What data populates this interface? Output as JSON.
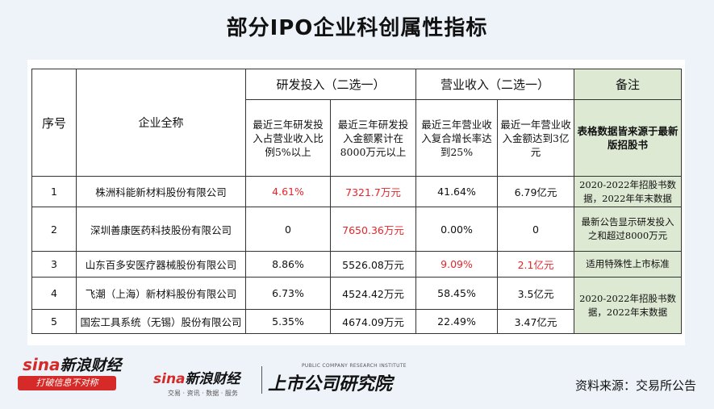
{
  "title": "部分IPO企业科创属性指标",
  "table": {
    "col_seq": "序号",
    "col_name": "企业全称",
    "group_rd": "研发投入（二选一）",
    "group_rev": "营业收入（二选一）",
    "group_note": "备注",
    "sub_rd1": "最近三年研发投入占营业收入比例5%以上",
    "sub_rd2": "最近三年研发投入金额累计在8000万元以上",
    "sub_rev1": "最近三年营业收入复合增长率达到25%",
    "sub_rev2": "最近一年营业收入金额达到3亿元",
    "sub_note": "表格数据皆来源于最新版招股书",
    "rows": [
      {
        "seq": "1",
        "name": "株洲科能新材料股份有限公司",
        "rd_ratio": "4.61%",
        "rd_amount": "7321.7万元",
        "rev_growth": "41.64%",
        "rev_last": "6.79亿元",
        "note": "2020-2022年招股书数据，2022年年末数据"
      },
      {
        "seq": "2",
        "name": "深圳善康医药科技股份有限公司",
        "rd_ratio": "0",
        "rd_amount": "7650.36万元",
        "rev_growth": "0.00%",
        "rev_last": "0",
        "note": "最新公告显示研发投入之和超过8000万元"
      },
      {
        "seq": "3",
        "name": "山东百多安医疗器械股份有限公司",
        "rd_ratio": "8.86%",
        "rd_amount": "5526.08万元",
        "rev_growth": "9.09%",
        "rev_last": "2.1亿元",
        "note": "适用特殊性上市标准"
      },
      {
        "seq": "4",
        "name": "飞潮（上海）新材料股份有限公司",
        "rd_ratio": "6.73%",
        "rd_amount": "4524.42万元",
        "rev_growth": "58.45%",
        "rev_last": "3.5亿元"
      },
      {
        "seq": "5",
        "name": "国宏工具系统（无锡）股份有限公司",
        "rd_ratio": "5.35%",
        "rd_amount": "4674.09万元",
        "rev_growth": "22.49%",
        "rev_last": "3.47亿元"
      }
    ],
    "note_merged": "2020-2022年招股书数据，2022年末数据"
  },
  "logos": {
    "sina_left_brand": "sina",
    "sina_left_name": "新浪财经",
    "sina_left_slogan": "打破信息不对称",
    "sina_mid_brand": "sina",
    "sina_mid_name": "新浪财经",
    "sina_mid_sub": "交易 · 资讯 · 数据 · 服务",
    "institute_en": "PUBLIC COMPANY RESEARCH INSTITUTE",
    "institute_cn": "上市公司研究院"
  },
  "source": "资料来源：交易所公告",
  "colors": {
    "highlight": "#e8242a",
    "note_bg": "#dde9d2",
    "brand": "#d52a27"
  }
}
